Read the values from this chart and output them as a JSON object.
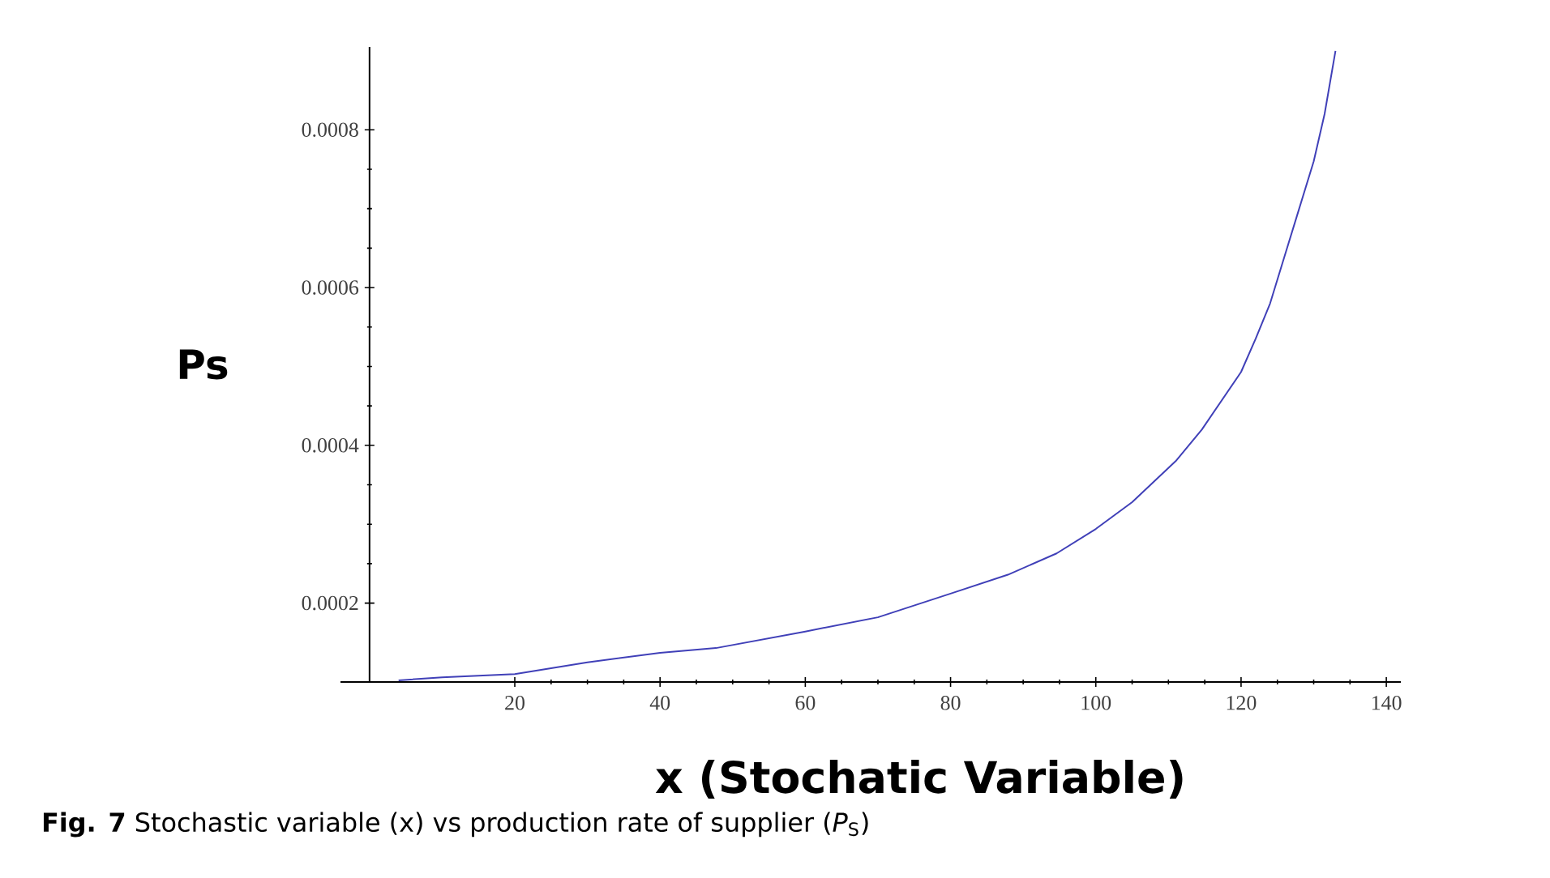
{
  "chart_data": {
    "type": "line",
    "xlabel": "x (Stochatic Variable)",
    "ylabel": "Ps",
    "annotations": [
      "**Fig. 7** Stochastic variable (x) vs production rate of supplier (*P*$_{S}$)"
    ],
    "series": [
      {
        "color": "#4040b8",
        "x": [
          4,
          10,
          20,
          30,
          40,
          47.7,
          60,
          70,
          80,
          87.9,
          94.6,
          100,
          105,
          111,
          114.6,
          120,
          122,
          124,
          126,
          128,
          130,
          131.5,
          133
        ],
        "values": [
          0.000102,
          0.000106,
          0.00011,
          0.000125,
          0.000137,
          0.000143,
          0.000164,
          0.000182,
          0.000212,
          0.000236,
          0.000263,
          0.000294,
          0.000328,
          0.00038,
          0.00042,
          0.000493,
          0.000535,
          0.00058,
          0.00064,
          0.0007,
          0.00076,
          0.00082,
          0.0009
        ]
      }
    ],
    "xlim": [
      -4,
      142
    ],
    "ylim": [
      0.0001,
      0.000905
    ],
    "xticks": [
      20,
      40,
      60,
      80,
      100,
      120,
      140
    ],
    "yticks": [
      0.0002,
      0.0004,
      0.0006,
      0.0008
    ],
    "grid": false,
    "line_style": "solid",
    "marker": "none"
  }
}
